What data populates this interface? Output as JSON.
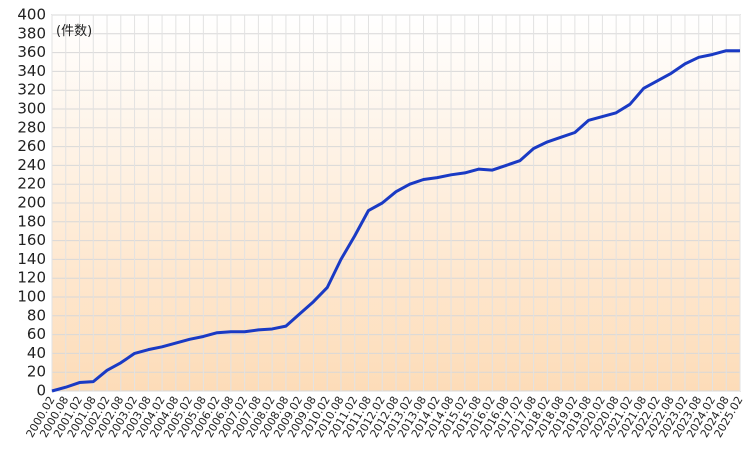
{
  "chart_data": {
    "type": "line",
    "annotation": "(件数)",
    "categories": [
      "2000.02",
      "2000.08",
      "2001.02",
      "2001.08",
      "2002.02",
      "2002.08",
      "2003.02",
      "2003.08",
      "2004.02",
      "2004.08",
      "2005.02",
      "2005.08",
      "2006.02",
      "2006.08",
      "2007.02",
      "2007.08",
      "2008.02",
      "2008.08",
      "2009.02",
      "2009.08",
      "2010.02",
      "2010.08",
      "2011.02",
      "2011.08",
      "2012.02",
      "2012.08",
      "2013.02",
      "2013.08",
      "2014.02",
      "2014.08",
      "2015.02",
      "2015.08",
      "2016.02",
      "2016.08",
      "2017.02",
      "2017.08",
      "2018.02",
      "2018.08",
      "2019.02",
      "2019.08",
      "2020.02",
      "2020.08",
      "2021.02",
      "2021.08",
      "2022.02",
      "2022.08",
      "2023.02",
      "2023.08",
      "2024.02",
      "2024.08",
      "2025.02"
    ],
    "values": [
      0,
      4,
      9,
      10,
      22,
      30,
      40,
      44,
      47,
      51,
      55,
      58,
      62,
      63,
      63,
      65,
      66,
      69,
      82,
      95,
      110,
      140,
      165,
      192,
      200,
      212,
      220,
      225,
      227,
      230,
      232,
      236,
      235,
      240,
      245,
      258,
      265,
      270,
      275,
      288,
      292,
      296,
      305,
      322,
      330,
      338,
      348,
      355,
      358,
      362,
      362
    ],
    "color": "#1a3ac4",
    "ylim": [
      0,
      400
    ],
    "yticks": [
      0,
      20,
      40,
      60,
      80,
      100,
      120,
      140,
      160,
      180,
      200,
      220,
      240,
      260,
      280,
      300,
      320,
      340,
      360,
      380,
      400
    ],
    "grid": true
  }
}
